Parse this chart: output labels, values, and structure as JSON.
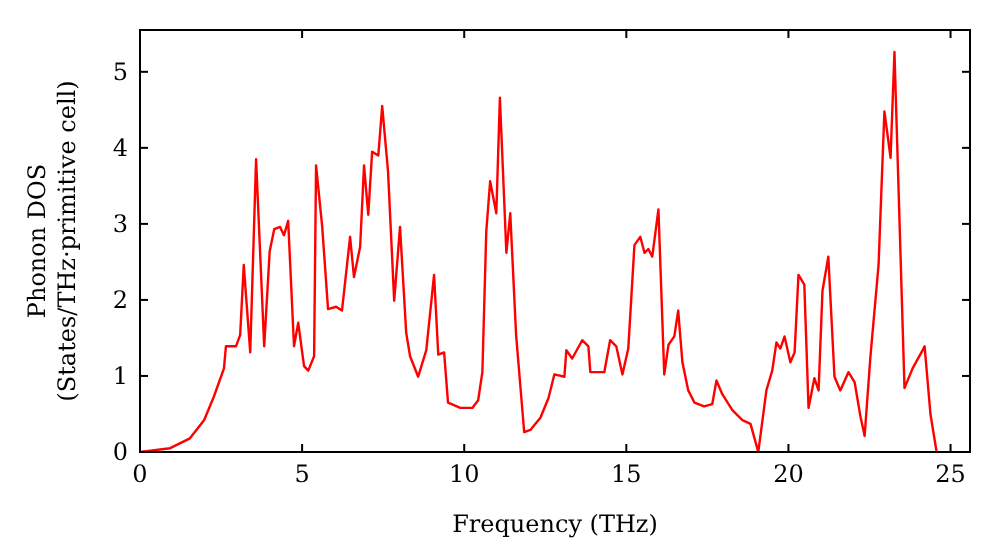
{
  "chart_data": {
    "type": "line",
    "xlabel": "Frequency (THz)",
    "ylabel": "Phonon DOS\n(States/THz·primitive cell)",
    "xlim": [
      0,
      25.6
    ],
    "ylim": [
      0,
      5.55
    ],
    "xticks": [
      0,
      5,
      10,
      15,
      20,
      25
    ],
    "yticks": [
      0,
      1,
      2,
      3,
      4,
      5
    ],
    "grid": false,
    "marker": "none",
    "line_style": "solid",
    "series": [
      {
        "color": "#ff0000",
        "x": [
          0,
          0.93,
          1.54,
          1.98,
          2.28,
          2.59,
          2.65,
          2.96,
          3.09,
          3.2,
          3.4,
          3.58,
          3.83,
          4.0,
          4.14,
          4.32,
          4.44,
          4.57,
          4.75,
          4.88,
          5.06,
          5.19,
          5.37,
          5.43,
          5.62,
          5.8,
          6.05,
          6.23,
          6.48,
          6.6,
          6.79,
          6.91,
          7.04,
          7.16,
          7.35,
          7.47,
          7.65,
          7.84,
          8.02,
          8.21,
          8.33,
          8.58,
          8.83,
          9.07,
          9.2,
          9.38,
          9.5,
          9.88,
          10.25,
          10.43,
          10.56,
          10.68,
          10.8,
          10.99,
          11.1,
          11.3,
          11.42,
          11.6,
          11.85,
          12.04,
          12.35,
          12.6,
          12.78,
          13.09,
          13.15,
          13.33,
          13.64,
          13.83,
          13.89,
          14.32,
          14.5,
          14.69,
          14.88,
          15.06,
          15.25,
          15.43,
          15.56,
          15.68,
          15.8,
          15.99,
          16.17,
          16.3,
          16.48,
          16.6,
          16.73,
          16.91,
          17.1,
          17.4,
          17.65,
          17.78,
          17.96,
          18.27,
          18.58,
          18.83,
          19.07,
          19.32,
          19.5,
          19.63,
          19.75,
          19.88,
          20.06,
          20.19,
          20.31,
          20.49,
          20.62,
          20.8,
          20.93,
          21.05,
          21.23,
          21.42,
          21.6,
          21.85,
          22.04,
          22.22,
          22.35,
          22.53,
          22.78,
          22.96,
          23.15,
          23.27,
          23.58,
          23.83,
          24.14,
          24.2,
          24.38,
          24.57
        ],
        "values": [
          0,
          0.05,
          0.18,
          0.42,
          0.73,
          1.1,
          1.39,
          1.39,
          1.54,
          2.46,
          1.31,
          3.85,
          1.39,
          2.64,
          2.93,
          2.96,
          2.85,
          3.04,
          1.39,
          1.7,
          1.13,
          1.07,
          1.26,
          3.77,
          2.96,
          1.88,
          1.91,
          1.86,
          2.83,
          2.3,
          2.7,
          3.77,
          3.12,
          3.95,
          3.9,
          4.55,
          3.69,
          1.99,
          2.96,
          1.57,
          1.26,
          0.99,
          1.34,
          2.33,
          1.28,
          1.31,
          0.65,
          0.58,
          0.58,
          0.68,
          1.05,
          2.9,
          3.56,
          3.14,
          4.66,
          2.62,
          3.14,
          1.54,
          0.26,
          0.29,
          0.45,
          0.71,
          1.02,
          0.99,
          1.34,
          1.23,
          1.47,
          1.39,
          1.05,
          1.05,
          1.47,
          1.39,
          1.02,
          1.36,
          2.72,
          2.83,
          2.62,
          2.67,
          2.57,
          3.19,
          1.02,
          1.41,
          1.52,
          1.86,
          1.18,
          0.81,
          0.65,
          0.6,
          0.63,
          0.94,
          0.76,
          0.55,
          0.42,
          0.37,
          0,
          0.81,
          1.07,
          1.44,
          1.36,
          1.52,
          1.18,
          1.31,
          2.33,
          2.2,
          0.58,
          0.97,
          0.81,
          2.12,
          2.57,
          0.99,
          0.81,
          1.05,
          0.92,
          0.47,
          0.21,
          1.26,
          2.46,
          4.48,
          3.87,
          5.26,
          0.84,
          1.1,
          1.34,
          1.39,
          0.5,
          0
        ]
      }
    ]
  }
}
